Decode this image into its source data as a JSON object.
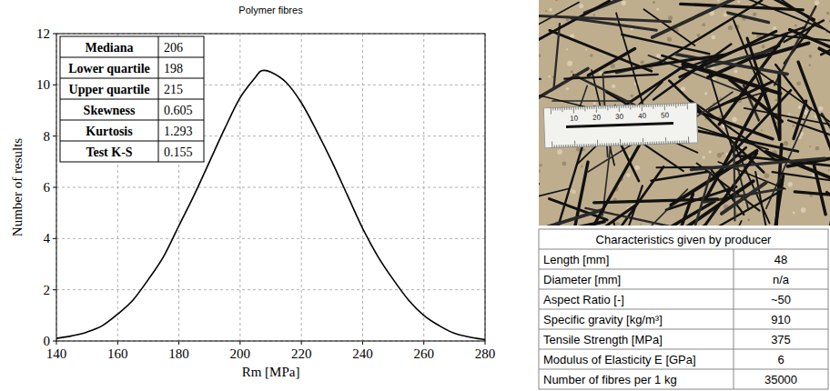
{
  "chart_data": {
    "type": "line",
    "title": "Polymer fibres",
    "x_label": "Rm [MPa]",
    "y_label": "Number of results",
    "x": [
      140,
      145,
      150,
      155,
      160,
      165,
      170,
      175,
      180,
      185,
      190,
      195,
      200,
      205,
      207,
      210,
      215,
      220,
      225,
      230,
      235,
      240,
      245,
      250,
      255,
      260,
      265,
      270,
      275,
      280
    ],
    "values": [
      0.1,
      0.2,
      0.35,
      0.6,
      1.05,
      1.6,
      2.4,
      3.3,
      4.5,
      5.7,
      7.0,
      8.3,
      9.5,
      10.3,
      10.55,
      10.5,
      10.1,
      9.3,
      8.2,
      7.0,
      5.7,
      4.4,
      3.3,
      2.4,
      1.6,
      1.0,
      0.6,
      0.3,
      0.15,
      0.05
    ],
    "color": "#000000",
    "xlim": [
      140,
      280
    ],
    "xticks": [
      140,
      160,
      180,
      200,
      220,
      240,
      260,
      280
    ],
    "ylim": [
      0,
      12
    ],
    "yticks": [
      0,
      2,
      4,
      6,
      8,
      10,
      12
    ],
    "grid": true
  },
  "stats_table": {
    "rows": [
      [
        "Mediana",
        206
      ],
      [
        "Lower quartile",
        198
      ],
      [
        "Upper quartile",
        215
      ],
      [
        "Skewness",
        0.605
      ],
      [
        "Kurtosis",
        1.293
      ],
      [
        "Test K-S",
        0.155
      ]
    ]
  },
  "photo": {
    "ruler_labels": [
      "10",
      "20",
      "30",
      "40",
      "50"
    ]
  },
  "producer_table": {
    "title": "Characteristics given by producer",
    "rows": [
      [
        "Length [mm]",
        48
      ],
      [
        "Diameter [mm]",
        "n/a"
      ],
      [
        "Aspect Ratio [-]",
        "~50"
      ],
      [
        "Specific gravity [kg/m³]",
        910
      ],
      [
        "Tensile Strength [MPa]",
        375
      ],
      [
        "Modulus of Elasticity E [GPa]",
        6
      ],
      [
        "Number of fibres per 1 kg",
        35000
      ]
    ]
  }
}
